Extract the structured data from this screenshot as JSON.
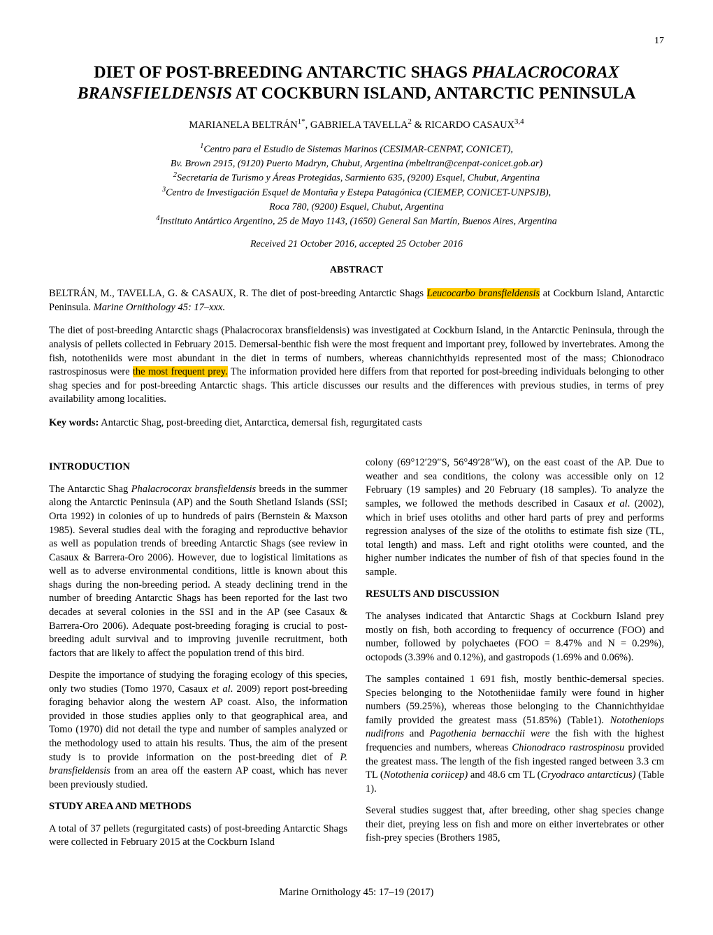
{
  "page_number": "17",
  "title_line1": "DIET OF POST-BREEDING ANTARCTIC SHAGS ",
  "title_italic1": "PHALACROCORAX BRANSFIELDENSIS",
  "title_line2": " AT COCKBURN ISLAND, ANTARCTIC PENINSULA",
  "authors_html": "MARIANELA BELTRÁN<sup>1*</sup>, GABRIELA TAVELLA<sup>2</sup> & RICARDO CASAUX<sup>3,4</sup>",
  "affiliations": [
    "<sup>1</sup>Centro para el Estudio de Sistemas Marinos (CESIMAR-CENPAT, CONICET),",
    "Bv. Brown 2915, (9120) Puerto Madryn, Chubut, Argentina (mbeltran@cenpat-conicet.gob.ar)",
    "<sup>2</sup>Secretaría de Turismo y Áreas Protegidas, Sarmiento 635, (9200) Esquel, Chubut, Argentina",
    "<sup>3</sup>Centro de Investigación Esquel de Montaña y Estepa Patagónica (CIEMEP, CONICET-UNPSJB),",
    "Roca 780, (9200) Esquel, Chubut, Argentina",
    "<sup>4</sup>Instituto Antártico Argentino, 25 de Mayo 1143, (1650) General San Martín, Buenos Aires, Argentina"
  ],
  "dates": "Received 21 October 2016, accepted 25 October 2016",
  "abstract_heading": "ABSTRACT",
  "citation_prefix": "BELTRÁN, M., TAVELLA, G. & CASAUX, R. The diet of post-breeding Antarctic Shags ",
  "citation_highlight": "Leucocarbo bransfieldensis",
  "citation_suffix": " at Cockburn Island, Antarctic Peninsula. ",
  "citation_journal": "Marine Ornithology 45: 17–xxx.",
  "abstract_p1": "The diet of post-breeding Antarctic shags (Phalacrocorax bransfieldensis) was investigated at Cockburn Island, in the Antarctic Peninsula, through the analysis of pellets collected in February 2015. Demersal-benthic fish were the most frequent and important prey, followed by invertebrates. Among the fish, nototheniids were most abundant in the diet in terms of numbers, whereas channichthyids represented most of the mass; Chionodraco rastrospinosus were ",
  "abstract_highlight": "the most frequent prey.",
  "abstract_p2": " The information provided here differs from that reported for post-breeding individuals belonging to other shag species and for post-breeding Antarctic shags. This article discusses our results and the differences with previous studies, in terms of prey availability among localities.",
  "keywords_label": "Key words:",
  "keywords_text": " Antarctic Shag, post-breeding diet, Antarctica, demersal fish, regurgitated casts",
  "left_col": {
    "h1": "INTRODUCTION",
    "p1": "The Antarctic Shag <span class=\"italic\">Phalacrocorax bransfieldensis</span> breeds in the summer along the Antarctic Peninsula (AP) and the South Shetland Islands (SSI; Orta 1992) in colonies of up to hundreds of pairs (Bernstein & Maxson 1985). Several studies deal with the foraging and reproductive behavior as well as population trends of breeding Antarctic Shags (see review in Casaux & Barrera-Oro 2006). However, due to logistical limitations as well as to adverse environmental conditions, little is known about this shags during the non-breeding period. A steady declining trend in the number of breeding Antarctic Shags has been reported for the last two decades at several colonies in the SSI and in the AP (see Casaux & Barrera-Oro 2006). Adequate post-breeding foraging is crucial to post-breeding adult survival and to improving juvenile recruitment, both factors that are likely to affect the population trend of this bird.",
    "p2": "Despite the importance of studying the foraging ecology of this species, only two studies (Tomo 1970, Casaux <span class=\"italic\">et al</span>. 2009) report post-breeding foraging behavior along the western AP coast. Also, the information provided in those studies applies only to that geographical area, and Tomo (1970) did not detail the type and number of samples analyzed or the methodology used to attain his results. Thus, the aim of the present study is to provide information on the post-breeding diet of <span class=\"italic\">P. bransfieldensis</span> from an area off the eastern AP coast, which has never been previously studied.",
    "h2": "STUDY AREA AND METHODS",
    "p3": "A total of 37 pellets (regurgitated casts) of post-breeding Antarctic Shags were collected in February 2015 at the Cockburn Island"
  },
  "right_col": {
    "p1": "colony (69°12′29″S, 56°49′28″W), on the east coast of the AP. Due to weather and sea conditions, the colony was accessible only on 12 February (19 samples) and 20 February (18 samples). To analyze the samples, we followed the methods described in Casaux <span class=\"italic\">et al</span>. (2002), which in brief uses otoliths and other hard parts of prey and performs regression analyses of the size of the otoliths to estimate fish size (TL, total length) and mass. Left and right otoliths were counted, and the higher number indicates the number of fish of that species found in the sample.",
    "h1": "RESULTS AND DISCUSSION",
    "p2": "The analyses indicated that Antarctic Shags at Cockburn Island prey mostly on fish, both according to frequency of occurrence (FOO) and number, followed by polychaetes (FOO = 8.47% and N = 0.29%), octopods (3.39% and 0.12%), and gastropods (1.69% and 0.06%).",
    "p3": "The samples contained 1 691 fish, mostly benthic-demersal species. Species belonging to the Nototheniidae family were found in higher numbers (59.25%), whereas those belonging to the Channichthyidae family provided the greatest mass (51.85%) (Table1). <span class=\"italic\">Nototheniops nudifrons</span> and <span class=\"italic\">Pagothenia bernacchii were</span> the fish with the highest frequencies and numbers, whereas <span class=\"italic\">Chionodraco rastrospinosu</span> provided the greatest mass. The length of the fish ingested ranged between 3.3 cm TL (<span class=\"italic\">Notothenia coriicep)</span> and 48.6 cm TL (<span class=\"italic\">Cryodraco antarcticus)</span> (Table 1).",
    "p4": "Several studies suggest that, after breeding, other shag species change their diet, preying less on fish and more on either invertebrates or other fish-prey species (Brothers 1985,"
  },
  "footer": "Marine Ornithology 45: 17–19 (2017)",
  "highlight_color": "#ffcc00"
}
